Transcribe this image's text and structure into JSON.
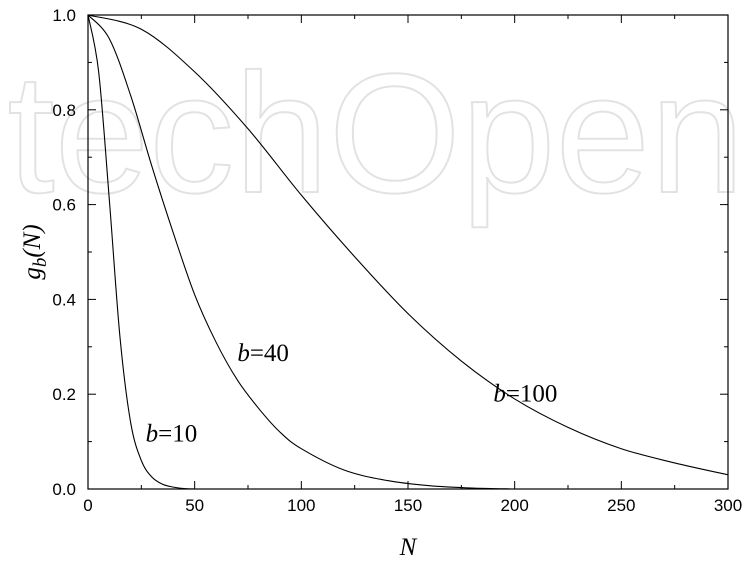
{
  "watermark": "techOpen",
  "chart_data": {
    "type": "line",
    "xlabel": "N",
    "ylabel_base": "g",
    "ylabel_sub": "b",
    "ylabel_arg": "(N)",
    "xlim": [
      0,
      300
    ],
    "ylim": [
      0,
      1.0
    ],
    "x_ticks": [
      0,
      50,
      100,
      150,
      200,
      250,
      300
    ],
    "x_tick_labels": [
      "0",
      "50",
      "100",
      "150",
      "200",
      "250",
      "300"
    ],
    "y_ticks": [
      0,
      0.2,
      0.4,
      0.6,
      0.8,
      1.0
    ],
    "y_tick_labels": [
      "0.0",
      "0.2",
      "0.4",
      "0.6",
      "0.8",
      "1.0"
    ],
    "grid": false,
    "series": [
      {
        "b": 10,
        "x": [
          0,
          5,
          10,
          15,
          20,
          25,
          30,
          35,
          40,
          45,
          50
        ],
        "y": [
          1.0,
          0.88,
          0.61,
          0.32,
          0.14,
          0.06,
          0.025,
          0.01,
          0.004,
          0.001,
          0.0
        ]
      },
      {
        "b": 40,
        "x": [
          0,
          10,
          20,
          30,
          40,
          50,
          60,
          70,
          80,
          90,
          100,
          120,
          140,
          160,
          180,
          200
        ],
        "y": [
          1.0,
          0.95,
          0.83,
          0.68,
          0.54,
          0.41,
          0.31,
          0.23,
          0.17,
          0.12,
          0.085,
          0.04,
          0.018,
          0.007,
          0.002,
          0.0
        ]
      },
      {
        "b": 100,
        "x": [
          0,
          25,
          50,
          75,
          100,
          125,
          150,
          175,
          200,
          225,
          250,
          275,
          300
        ],
        "y": [
          1.0,
          0.97,
          0.88,
          0.76,
          0.62,
          0.49,
          0.37,
          0.27,
          0.19,
          0.13,
          0.085,
          0.055,
          0.03
        ]
      }
    ],
    "annotations": [
      {
        "var": "b",
        "text": "=10",
        "x": 27,
        "y": 0.1
      },
      {
        "var": "b",
        "text": "=40",
        "x": 70,
        "y": 0.27
      },
      {
        "var": "b",
        "text": "=100",
        "x": 190,
        "y": 0.185
      }
    ]
  }
}
